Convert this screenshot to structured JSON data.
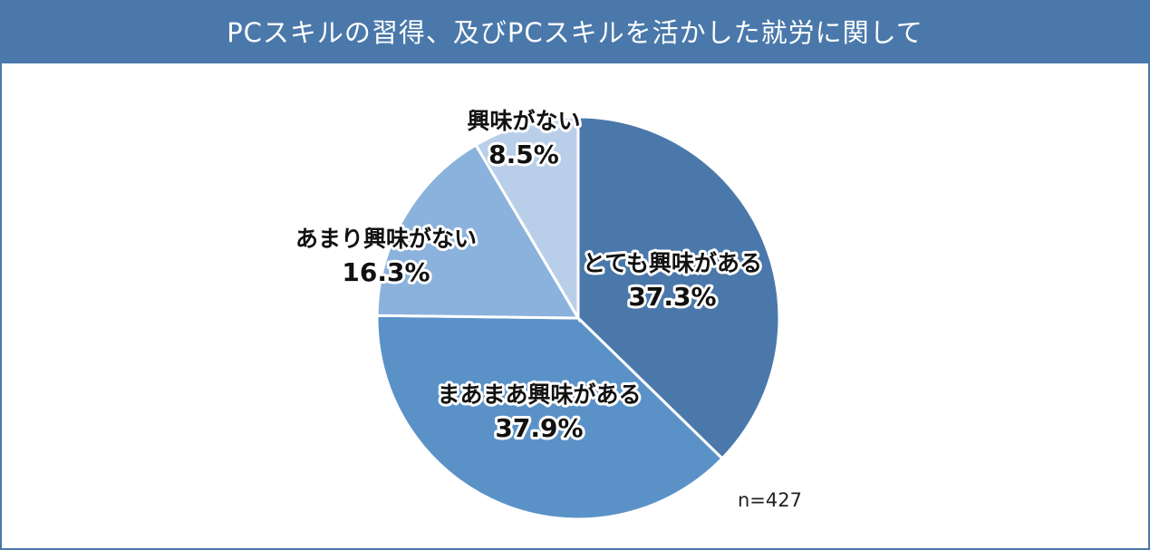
{
  "chart_data": {
    "type": "pie",
    "title": "PCスキルの習得、及びPCスキルを活かした就労に関して",
    "slices": [
      {
        "label": "とても興味がある",
        "value": 37.3,
        "display": "37.3%",
        "color": "#4a78aa"
      },
      {
        "label": "まあまあ興味がある",
        "value": 37.9,
        "display": "37.9%",
        "color": "#5a92c8"
      },
      {
        "label": "あまり興味がない",
        "value": 16.3,
        "display": "16.3%",
        "color": "#8ab2dc"
      },
      {
        "label": "興味がない",
        "value": 8.5,
        "display": "8.5%",
        "color": "#b9cfe9"
      }
    ],
    "start": "12 o'clock",
    "direction": "clockwise",
    "note": "n=427"
  }
}
